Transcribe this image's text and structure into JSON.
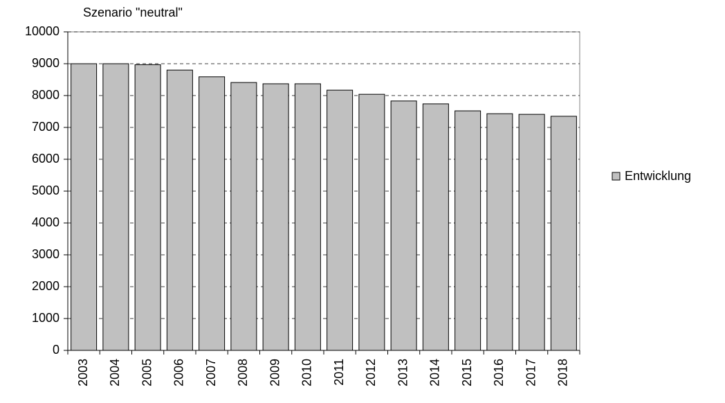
{
  "chart_data": {
    "type": "bar",
    "title": "Szenario \"neutral\"",
    "categories": [
      "2003",
      "2004",
      "2005",
      "2006",
      "2007",
      "2008",
      "2009",
      "2010",
      "2011",
      "2012",
      "2013",
      "2014",
      "2015",
      "2016",
      "2017",
      "2018"
    ],
    "series": [
      {
        "name": "Entwicklung",
        "color": "#c0c0c0",
        "values": [
          9000,
          9000,
          8970,
          8800,
          8590,
          8410,
          8370,
          8370,
          8170,
          8040,
          7830,
          7740,
          7520,
          7430,
          7410,
          7350
        ]
      }
    ],
    "ylim": [
      0,
      10000
    ],
    "yticks": [
      0,
      1000,
      2000,
      3000,
      4000,
      5000,
      6000,
      7000,
      8000,
      9000,
      10000
    ],
    "grid": true,
    "legend": "right"
  }
}
